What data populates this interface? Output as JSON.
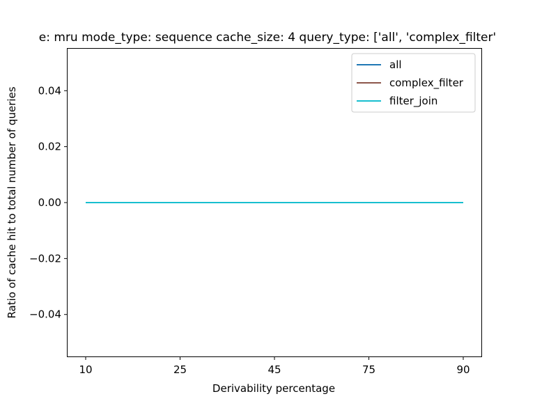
{
  "chart_data": {
    "type": "line",
    "title": "e: mru mode_type: sequence cache_size: 4 query_type: ['all', 'complex_filter'",
    "xlabel": "Derivability percentage",
    "ylabel": "Ratio of cache hit to total number of queries",
    "categories": [
      "10",
      "25",
      "45",
      "75",
      "90"
    ],
    "ylim": [
      -0.055,
      0.055
    ],
    "yticks": [
      "0.04",
      "0.02",
      "0.00",
      "−0.02",
      "−0.04"
    ],
    "grid": false,
    "legend_position": "top-right",
    "series": [
      {
        "name": "all",
        "color": "#1f77b4",
        "values": [
          0,
          0,
          0,
          0,
          0
        ]
      },
      {
        "name": "complex_filter",
        "color": "#8c564b",
        "values": [
          0,
          0,
          0,
          0,
          0
        ]
      },
      {
        "name": "filter_join",
        "color": "#17becf",
        "values": [
          0,
          0,
          0,
          0,
          0
        ]
      }
    ]
  }
}
